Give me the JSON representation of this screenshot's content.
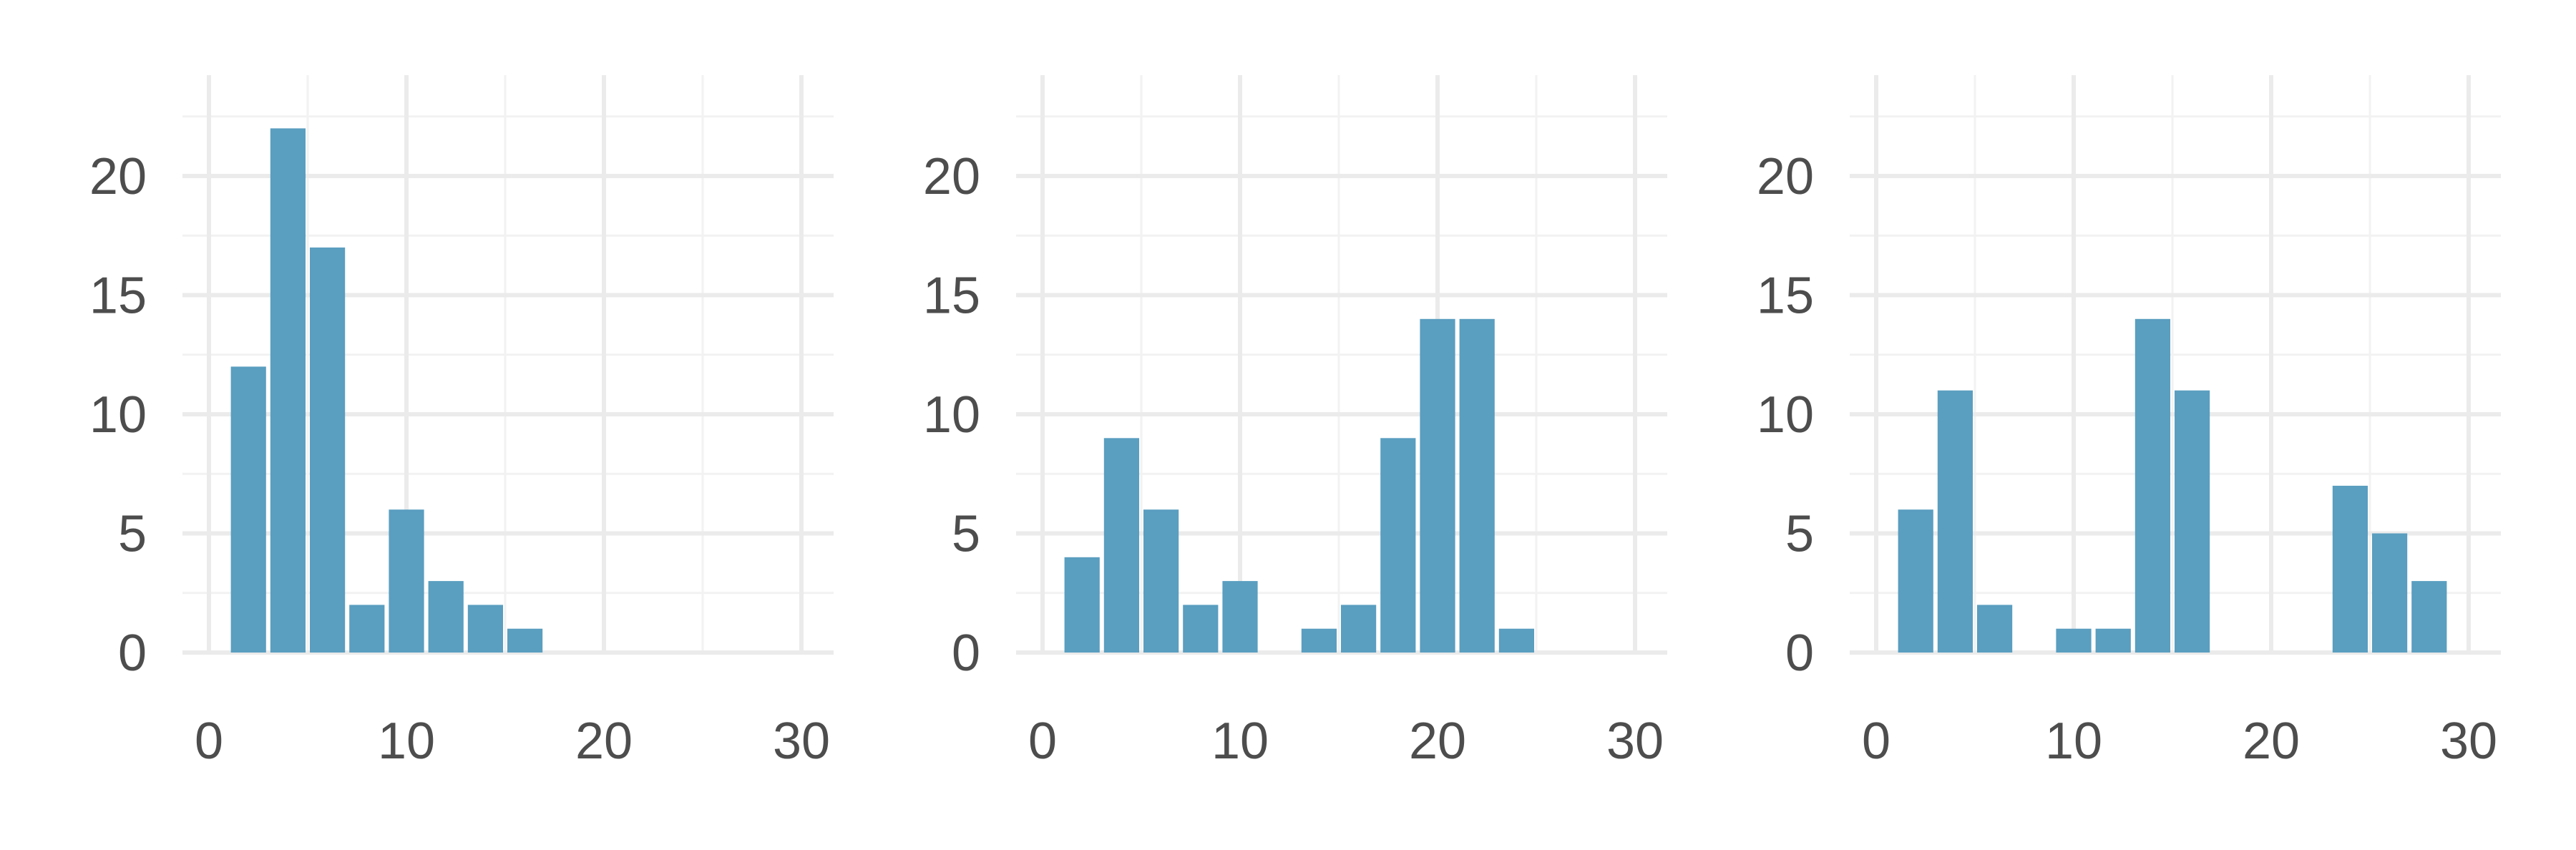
{
  "colors": {
    "bar": "#5a9ec0",
    "grid_major": "#ebebeb",
    "grid_minor": "#f2f2f2",
    "tick_text": "#4d4d4d",
    "background": "#ffffff"
  },
  "chart_data": [
    {
      "type": "bar",
      "title": "",
      "xlabel": "",
      "ylabel": "",
      "bin_width": 2,
      "x": [
        2,
        4,
        6,
        8,
        10,
        12,
        14,
        16,
        18,
        20,
        22,
        24,
        26,
        28
      ],
      "values": [
        12,
        22,
        17,
        2,
        6,
        3,
        2,
        1,
        0,
        0,
        0,
        0,
        0,
        0
      ],
      "xlim": [
        0,
        30
      ],
      "ylim": [
        0,
        22
      ],
      "xticks": [
        0,
        10,
        20,
        30
      ],
      "yticks": [
        0,
        5,
        10,
        15,
        20
      ],
      "grid": true
    },
    {
      "type": "bar",
      "title": "",
      "xlabel": "",
      "ylabel": "",
      "bin_width": 2,
      "x": [
        2,
        4,
        6,
        8,
        10,
        12,
        14,
        16,
        18,
        20,
        22,
        24,
        26,
        28
      ],
      "values": [
        4,
        9,
        6,
        2,
        3,
        0,
        1,
        2,
        9,
        14,
        14,
        1,
        0,
        0
      ],
      "xlim": [
        0,
        30
      ],
      "ylim": [
        0,
        22
      ],
      "xticks": [
        0,
        10,
        20,
        30
      ],
      "yticks": [
        0,
        5,
        10,
        15,
        20
      ],
      "grid": true
    },
    {
      "type": "bar",
      "title": "",
      "xlabel": "",
      "ylabel": "",
      "bin_width": 2,
      "x": [
        2,
        4,
        6,
        8,
        10,
        12,
        14,
        16,
        18,
        20,
        22,
        24,
        26,
        28
      ],
      "values": [
        6,
        11,
        2,
        0,
        1,
        1,
        14,
        11,
        0,
        0,
        0,
        7,
        5,
        3
      ],
      "xlim": [
        0,
        30
      ],
      "ylim": [
        0,
        22
      ],
      "xticks": [
        0,
        10,
        20,
        30
      ],
      "yticks": [
        0,
        5,
        10,
        15,
        20
      ],
      "grid": true
    }
  ]
}
